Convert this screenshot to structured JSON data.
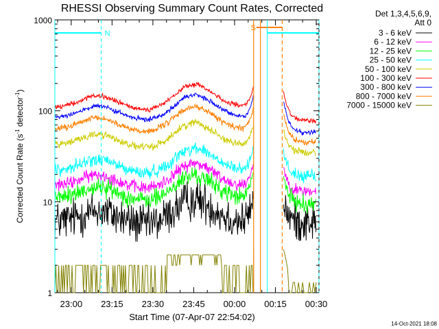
{
  "chart_data": {
    "type": "line",
    "title": "RHESSI Observing Summary Count Rates, Corrected",
    "xlabel": "Start Time (07-Apr-07 22:54:02)",
    "ylabel": "Corrected Count Rate (s⁻¹ detector⁻¹)",
    "ylabel_parts": {
      "pre": "Corrected Count Rate (s",
      "sup1": "-1",
      "mid": " detector",
      "sup2": "-1",
      "post": ")"
    },
    "yscale": "log",
    "ylim": [
      1,
      1000
    ],
    "xlim_min": [
      -6,
      91
    ],
    "x_ticks": [
      {
        "min": 0,
        "label": "23:00"
      },
      {
        "min": 15,
        "label": "23:15"
      },
      {
        "min": 30,
        "label": "23:30"
      },
      {
        "min": 45,
        "label": "23:45"
      },
      {
        "min": 60,
        "label": "00:00"
      },
      {
        "min": 75,
        "label": "00:15"
      },
      {
        "min": 90,
        "label": "00:30"
      }
    ],
    "y_ticks": [
      {
        "value": 1,
        "label": "1"
      },
      {
        "value": 10,
        "label": "10"
      },
      {
        "value": 100,
        "label": "100"
      },
      {
        "value": 1000,
        "label": "1000"
      }
    ],
    "detectors": "Det 1,3,4,5,6,9,",
    "attenuator": "Att 0",
    "legend_position": "right",
    "series": [
      {
        "name": "3 - 6 keV",
        "color": "#000000",
        "base": 6,
        "noise": 0.16,
        "pre_peak": 10,
        "post_level": 6
      },
      {
        "name": "6 - 12 keV",
        "color": "#ff00ff",
        "base": 15,
        "noise": 0.05,
        "pre_peak": 25,
        "post_level": 13
      },
      {
        "name": "12 - 25 keV",
        "color": "#00ff00",
        "base": 11,
        "noise": 0.07,
        "pre_peak": 20,
        "post_level": 9.5
      },
      {
        "name": "25 - 50 keV",
        "color": "#00ffff",
        "base": 22,
        "noise": 0.05,
        "pre_peak": 38,
        "post_level": 19
      },
      {
        "name": "50 - 100 keV",
        "color": "#cccc00",
        "base": 42,
        "noise": 0.03,
        "pre_peak": 65,
        "post_level": 35
      },
      {
        "name": "100 - 300 keV",
        "color": "#ff0000",
        "base": 110,
        "noise": 0.02,
        "pre_peak": 170,
        "post_level": 78
      },
      {
        "name": "300 - 800 keV",
        "color": "#0000ff",
        "base": 85,
        "noise": 0.02,
        "pre_peak": 135,
        "post_level": 58
      },
      {
        "name": "800 - 7000 keV",
        "color": "#ff8000",
        "base": 63,
        "noise": 0.025,
        "pre_peak": 100,
        "post_level": 45
      },
      {
        "name": "7000 - 15000 keV",
        "color": "#808000",
        "base": 2,
        "noise": 0.5,
        "pre_peak": 2,
        "post_level": 1
      }
    ],
    "flare_window_min": [
      62,
      68
    ],
    "night_flag": {
      "label": "N",
      "start_min": -6,
      "end_min": 11
    },
    "saa_flag": {
      "label": "S",
      "start_min": 69,
      "end_min": 77.5
    },
    "cyan_vlines_min": [
      -6,
      11,
      72,
      91
    ],
    "orange_vlines_min": [
      67,
      69.5,
      77.5
    ],
    "background_gap_min": [
      67,
      70
    ]
  },
  "footer_date": "14-Oct-2021 18:08"
}
